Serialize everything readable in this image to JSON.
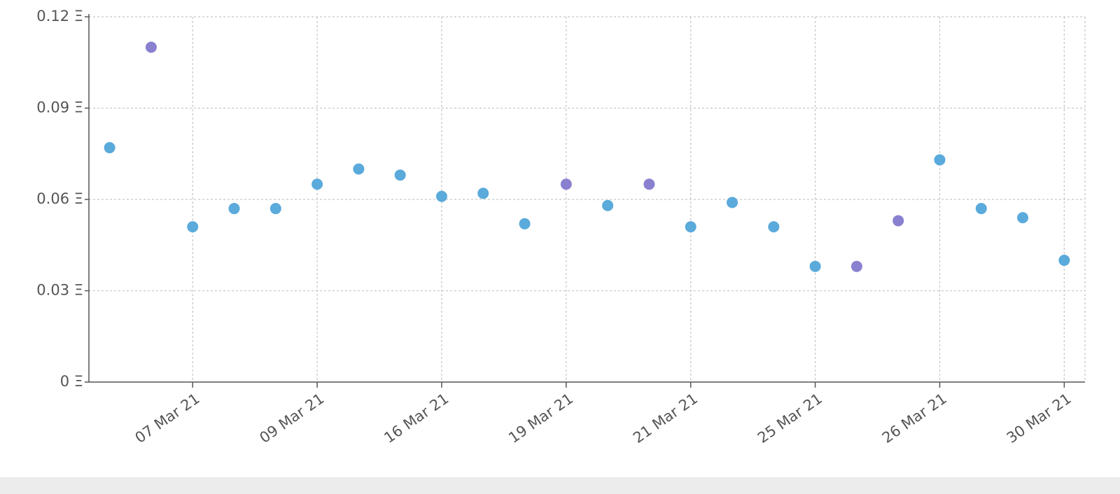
{
  "chart_data": {
    "type": "scatter",
    "categories": [
      null,
      null,
      "07 Mar 21",
      null,
      null,
      "09 Mar 21",
      null,
      null,
      "16 Mar 21",
      null,
      null,
      "19 Mar 21",
      null,
      null,
      "21 Mar 21",
      null,
      null,
      "25 Mar 21",
      null,
      null,
      "26 Mar 21",
      null,
      null,
      "30 Mar 21"
    ],
    "values": [
      0.077,
      0.11,
      0.051,
      0.057,
      0.057,
      0.065,
      0.07,
      0.068,
      0.061,
      0.062,
      0.052,
      0.065,
      0.058,
      0.065,
      0.051,
      0.059,
      0.051,
      0.038,
      0.038,
      0.053,
      0.073,
      0.057,
      0.054,
      0.04
    ],
    "colors": [
      "#5aaadb",
      "#8a80d0",
      "#5aaadb",
      "#5aaadb",
      "#5aaadb",
      "#5aaadb",
      "#5aaadb",
      "#5aaadb",
      "#5aaadb",
      "#5aaadb",
      "#5aaadb",
      "#8a80d0",
      "#5aaadb",
      "#8a80d0",
      "#5aaadb",
      "#5aaadb",
      "#5aaadb",
      "#5aaadb",
      "#8a80d0",
      "#8a80d0",
      "#5aaadb",
      "#5aaadb",
      "#5aaadb",
      "#5aaadb"
    ],
    "ylim": [
      0,
      0.12
    ],
    "yticks": [
      {
        "value": 0,
        "label": "0 Ξ"
      },
      {
        "value": 0.03,
        "label": "0.03 Ξ"
      },
      {
        "value": 0.06,
        "label": "0.06 Ξ"
      },
      {
        "value": 0.09,
        "label": "0.09 Ξ"
      },
      {
        "value": 0.12,
        "label": "0.12 Ξ"
      }
    ],
    "grid": true
  }
}
